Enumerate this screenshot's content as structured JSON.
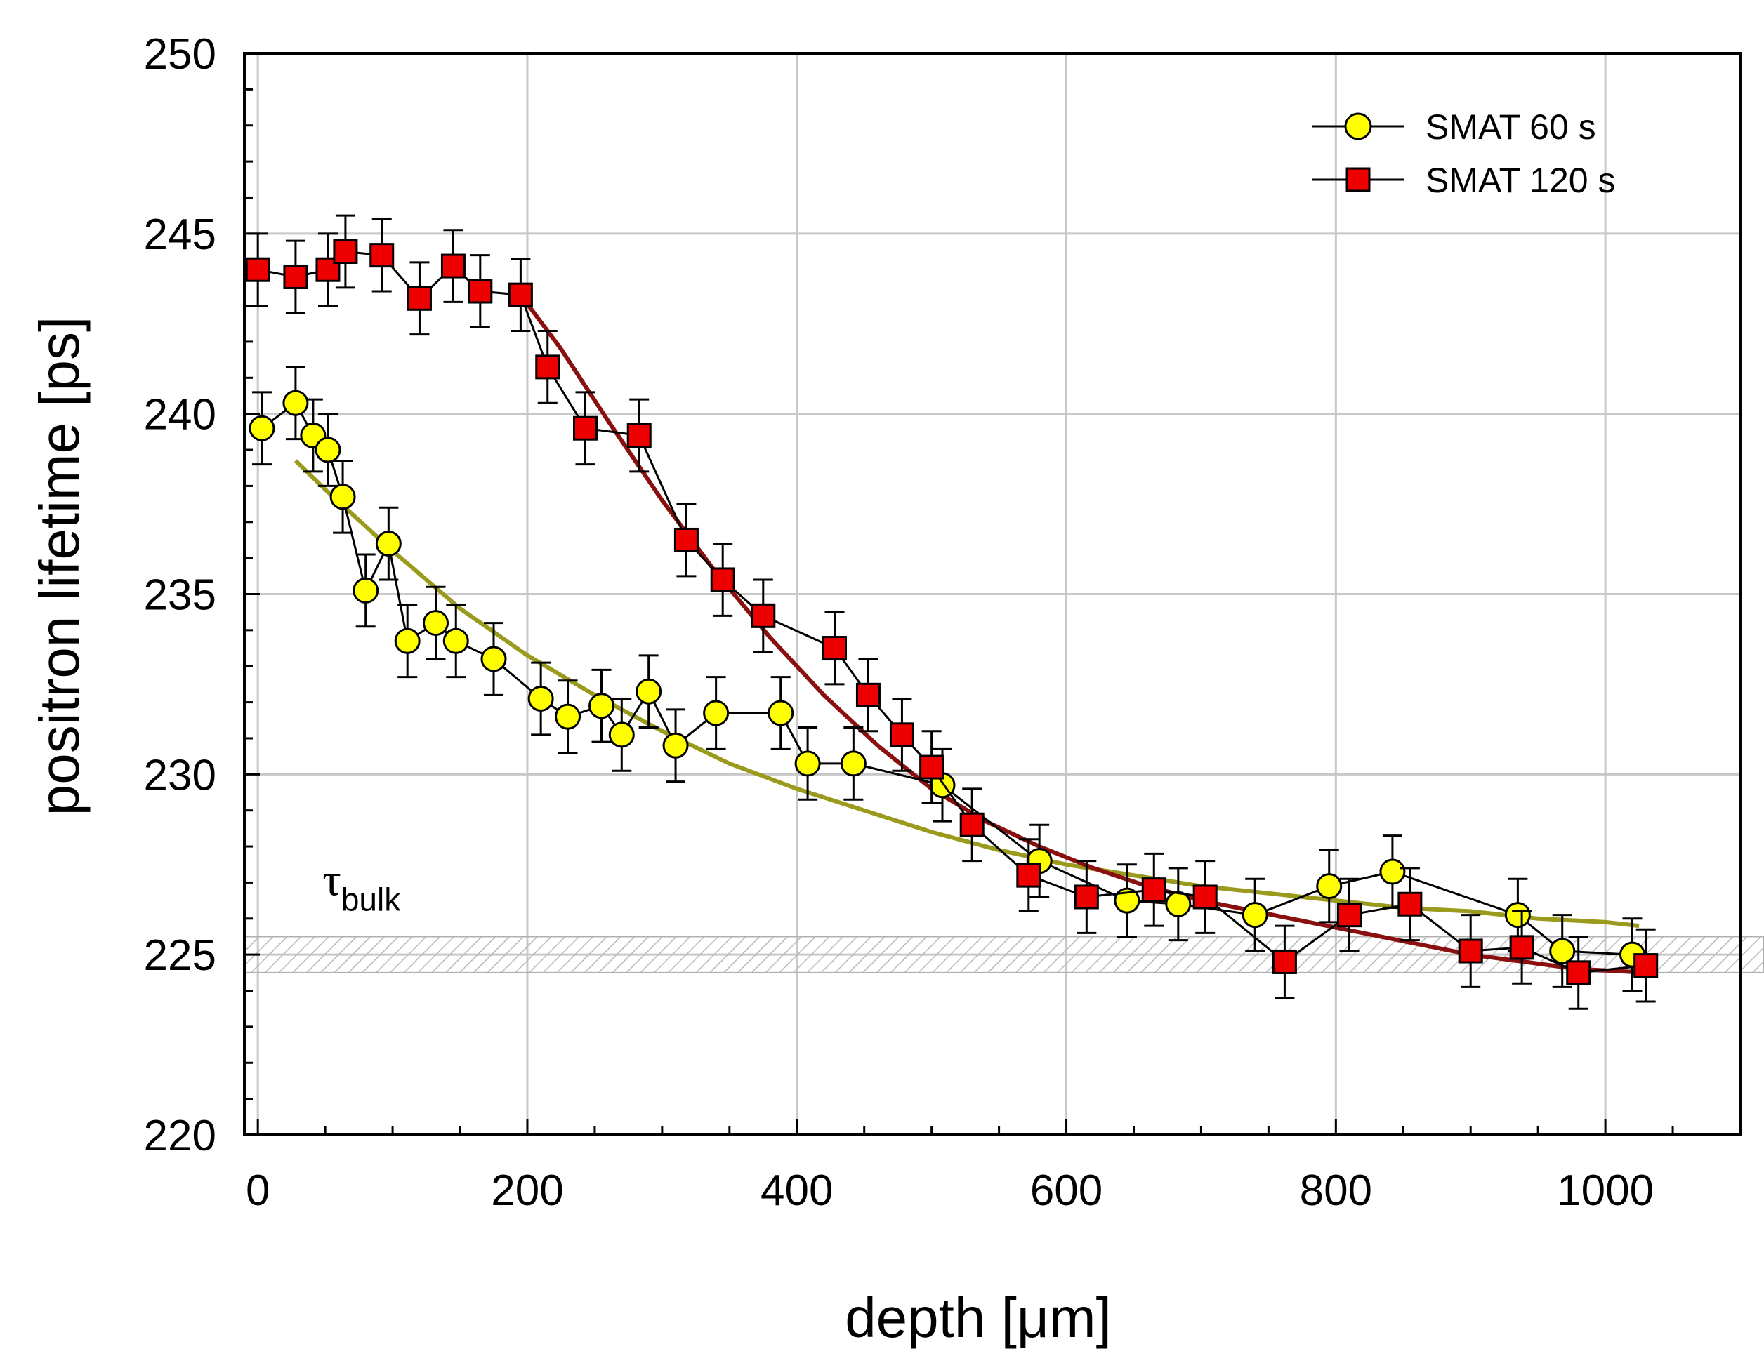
{
  "chart_data": {
    "type": "scatter",
    "title": "",
    "xlabel": "depth [μm]",
    "ylabel": "positron lifetime [ps]",
    "xlim": [
      -10,
      1100
    ],
    "ylim": [
      220,
      250
    ],
    "xticks": [
      0,
      200,
      400,
      600,
      800,
      1000
    ],
    "yticks": [
      220,
      225,
      230,
      235,
      240,
      245,
      250
    ],
    "xtick_labels": [
      "0",
      "200",
      "400",
      "600",
      "800",
      "1000"
    ],
    "ytick_labels": [
      "220",
      "225",
      "230",
      "235",
      "240",
      "245",
      "250"
    ],
    "grid": true,
    "legend_position": "top-right",
    "annotation": {
      "symbol": "τ",
      "subscript": "bulk",
      "band_low": 224.5,
      "band_high": 225.5
    },
    "series": [
      {
        "name": "SMAT 60 s",
        "marker": "circle",
        "color": "#ffff00",
        "x": [
          3,
          28,
          41,
          52,
          63,
          80,
          97,
          111,
          132,
          147,
          175,
          210,
          230,
          255,
          270,
          290,
          310,
          340,
          388,
          408,
          442,
          508,
          580,
          645,
          683,
          740,
          795,
          842,
          935,
          968,
          1020
        ],
        "y": [
          239.6,
          240.3,
          239.4,
          239.0,
          237.7,
          235.1,
          236.4,
          233.7,
          234.2,
          233.7,
          233.2,
          232.1,
          231.6,
          231.9,
          231.1,
          232.3,
          230.8,
          231.7,
          231.7,
          230.3,
          230.3,
          229.7,
          227.6,
          226.5,
          226.4,
          226.1,
          226.9,
          227.3,
          226.1,
          225.1,
          225.0
        ],
        "error": 1.0,
        "fit": {
          "color": "#9a9a1c",
          "x": [
            28,
            50,
            100,
            150,
            200,
            250,
            300,
            350,
            400,
            450,
            500,
            550,
            600,
            650,
            700,
            750,
            800,
            850,
            900,
            950,
            1000,
            1025
          ],
          "y": [
            238.7,
            237.9,
            236.2,
            234.6,
            233.3,
            232.2,
            231.2,
            230.3,
            229.6,
            229.0,
            228.4,
            227.9,
            227.5,
            227.2,
            226.9,
            226.7,
            226.5,
            226.3,
            226.2,
            226.0,
            225.9,
            225.8
          ]
        }
      },
      {
        "name": "SMAT 120 s",
        "marker": "square",
        "color": "#ee0000",
        "x": [
          0,
          28,
          52,
          65,
          92,
          120,
          145,
          165,
          195,
          215,
          243,
          283,
          318,
          345,
          375,
          428,
          453,
          478,
          500,
          530,
          572,
          615,
          665,
          703,
          762,
          810,
          855,
          900,
          938,
          980,
          1030
        ],
        "y": [
          244.0,
          243.8,
          244.0,
          244.5,
          244.4,
          243.2,
          244.1,
          243.4,
          243.3,
          241.3,
          239.6,
          239.4,
          236.5,
          235.4,
          234.4,
          233.5,
          232.2,
          231.1,
          230.2,
          228.6,
          227.2,
          226.6,
          226.8,
          226.6,
          224.8,
          226.1,
          226.4,
          225.1,
          225.2,
          224.5,
          224.7
        ],
        "error": 1.0,
        "fit": {
          "color": "#8a1010",
          "x": [
            195,
            225,
            260,
            300,
            340,
            380,
            420,
            460,
            500,
            540,
            580,
            620,
            660,
            700,
            740,
            780,
            820,
            860,
            900,
            940,
            980,
            1030
          ],
          "y": [
            243.3,
            241.8,
            239.8,
            237.6,
            235.6,
            233.8,
            232.2,
            230.8,
            229.6,
            228.7,
            228.0,
            227.4,
            226.9,
            226.5,
            226.2,
            225.9,
            225.6,
            225.3,
            225.0,
            224.8,
            224.6,
            224.5
          ]
        }
      }
    ]
  }
}
